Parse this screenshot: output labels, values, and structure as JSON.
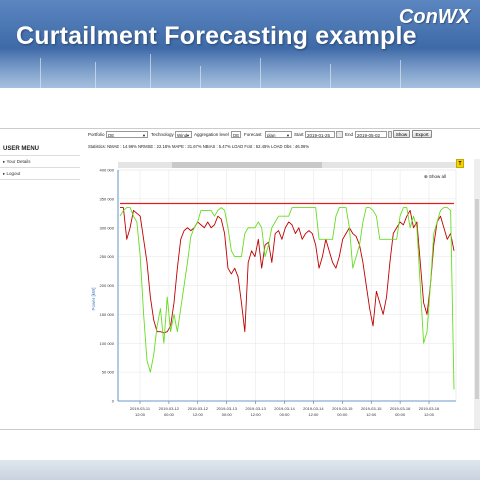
{
  "slide": {
    "title": "Curtailment Forecasting example",
    "logo": "ConWX"
  },
  "sidebar": {
    "title": "USER MENU",
    "items": [
      {
        "label": "Your Details"
      },
      {
        "label": "Logout"
      }
    ]
  },
  "toolbar": {
    "portfolio_label": "Portfolio",
    "portfolio_value": "DE",
    "technology_label": "Technology",
    "technology_value": "Wind",
    "aggregation_label": "Aggregation level",
    "aggregation_value": "DE",
    "forecast_label": "Forecast",
    "forecast_value": "plan",
    "start_label": "Start",
    "start_value": "2019-01-25",
    "end_label": "End",
    "end_value": "2019-05-02",
    "show_button": "Show",
    "export_button": "Export"
  },
  "statistics": {
    "text": "Statistics:   NMAE : 14.96%  NRMSE : 22.18%  MAPE : 31.67%  NBIAS : 5.47%  LOAD Fcst : 52.45%  LOAD Obs : 46.06%"
  },
  "chart_controls": {
    "zoom_label": "Show all",
    "panel_marker": "T"
  },
  "chart_data": {
    "type": "line",
    "ylabel": "Power [kW]",
    "ylim": [
      0,
      400000
    ],
    "yticks": [
      "400 000",
      "350 000",
      "300 000",
      "250 000",
      "200 000",
      "150 000",
      "100 000",
      "50 000",
      "0"
    ],
    "xtick_labels": [
      [
        "2019-03-11",
        "12:00"
      ],
      [
        "2019-03-12",
        "00:00"
      ],
      [
        "2019-03-12",
        "12:00"
      ],
      [
        "2019-03-13",
        "00:00"
      ],
      [
        "2019-03-13",
        "12:00"
      ],
      [
        "2019-03-14",
        "00:00"
      ],
      [
        "2019-03-14",
        "12:00"
      ],
      [
        "2019-03-15",
        "00:00"
      ],
      [
        "2019-03-15",
        "12:00"
      ],
      [
        "2019-03-16",
        "00:00"
      ],
      [
        "2019-03-16",
        "12:00"
      ]
    ],
    "series": [
      {
        "color": "#c00000",
        "values": [
          335000,
          335000,
          280000,
          300000,
          330000,
          325000,
          320000,
          280000,
          240000,
          180000,
          140000,
          120000,
          120000,
          118000,
          120000,
          130000,
          170000,
          230000,
          280000,
          295000,
          300000,
          295000,
          300000,
          310000,
          305000,
          300000,
          310000,
          300000,
          305000,
          320000,
          315000,
          290000,
          230000,
          220000,
          230000,
          215000,
          170000,
          120000,
          240000,
          260000,
          250000,
          280000,
          230000,
          270000,
          275000,
          240000,
          290000,
          295000,
          280000,
          300000,
          310000,
          305000,
          290000,
          300000,
          280000,
          290000,
          295000,
          290000,
          270000,
          230000,
          250000,
          280000,
          260000,
          240000,
          230000,
          250000,
          280000,
          290000,
          300000,
          290000,
          285000,
          270000,
          240000,
          200000,
          160000,
          130000,
          190000,
          170000,
          150000,
          180000,
          240000,
          290000,
          300000,
          310000,
          305000,
          320000,
          330000,
          300000,
          310000,
          240000,
          170000,
          150000,
          200000,
          270000,
          310000,
          320000,
          300000,
          280000,
          290000,
          260000
        ]
      },
      {
        "color": "#66dd22",
        "values": [
          320000,
          330000,
          335000,
          335000,
          320000,
          310000,
          250000,
          150000,
          70000,
          50000,
          80000,
          130000,
          160000,
          100000,
          180000,
          120000,
          150000,
          120000,
          160000,
          200000,
          240000,
          285000,
          300000,
          310000,
          330000,
          330000,
          330000,
          330000,
          320000,
          330000,
          335000,
          330000,
          300000,
          260000,
          250000,
          250000,
          250000,
          290000,
          300000,
          300000,
          300000,
          310000,
          300000,
          250000,
          270000,
          300000,
          310000,
          320000,
          320000,
          320000,
          320000,
          335000,
          335000,
          335000,
          335000,
          335000,
          335000,
          335000,
          335000,
          280000,
          280000,
          280000,
          280000,
          280000,
          320000,
          335000,
          335000,
          335000,
          300000,
          230000,
          250000,
          270000,
          310000,
          335000,
          335000,
          330000,
          320000,
          280000,
          280000,
          280000,
          280000,
          280000,
          280000,
          320000,
          335000,
          335000,
          300000,
          320000,
          300000,
          200000,
          100000,
          120000,
          200000,
          290000,
          310000,
          330000,
          335000,
          335000,
          330000,
          20000
        ]
      },
      {
        "color": "#e02020",
        "values": [
          342000,
          342000
        ]
      }
    ],
    "grid": true
  }
}
